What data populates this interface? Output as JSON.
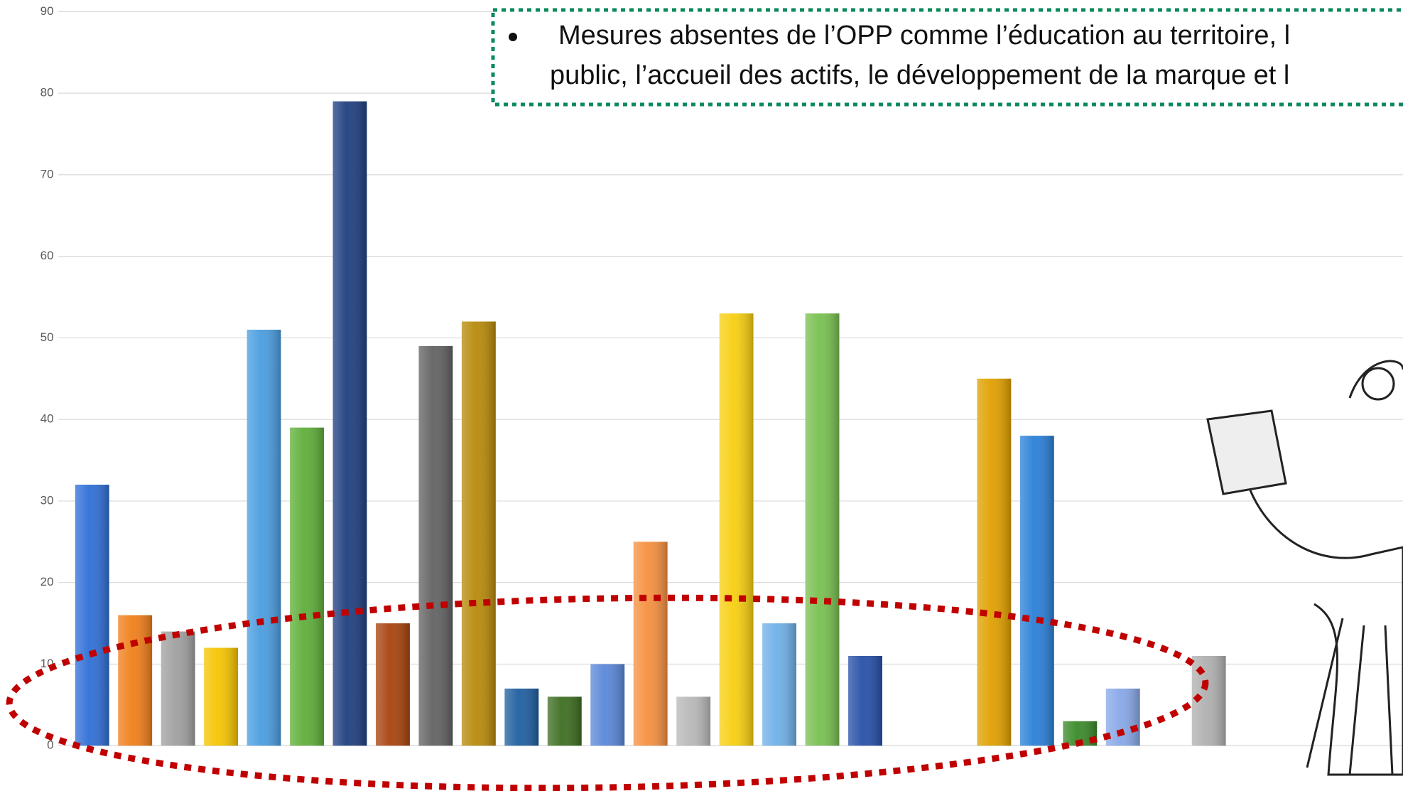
{
  "chart_data": {
    "type": "bar",
    "categories": [
      null,
      null,
      null,
      null,
      null,
      null,
      null,
      null,
      null,
      null,
      null,
      null,
      null,
      null,
      null,
      null,
      null,
      null,
      null,
      null,
      null,
      null,
      null,
      null,
      null,
      null,
      null
    ],
    "values": [
      32,
      16,
      14,
      12,
      51,
      39,
      79,
      15,
      49,
      52,
      7,
      6,
      10,
      25,
      6,
      53,
      15,
      53,
      11,
      null,
      null,
      45,
      38,
      3,
      7,
      null,
      11
    ],
    "colors": [
      "#2f6fd6",
      "#f07f1a",
      "#a0a0a0",
      "#f5c400",
      "#4a9de0",
      "#5fae3a",
      "#1f3f80",
      "#a8430e",
      "#626262",
      "#b88a0a",
      "#1f5fa0",
      "#3d6e22",
      "#5a87d8",
      "#f59040",
      "#b8b8b8",
      "#f7cf10",
      "#6fb0e8",
      "#78c050",
      "#2750a8",
      null,
      null,
      "#e0a000",
      "#2a80d8",
      "#3a8a2a",
      "#88a8e8",
      null,
      "#b0b0b0"
    ],
    "ylim": [
      0,
      90
    ],
    "yticks": [
      0,
      10,
      20,
      30,
      40,
      50,
      60,
      70,
      80,
      90
    ],
    "grid": true,
    "annotations": [
      "Mesures absentes de l’OPP comme l’éducation au territoire, l",
      "public, l’accueil des actifs, le développement de la marque et l"
    ]
  }
}
